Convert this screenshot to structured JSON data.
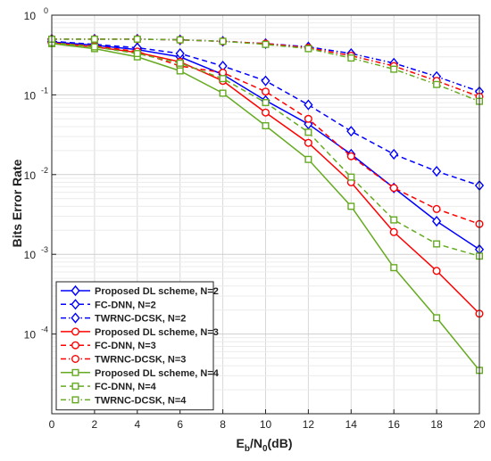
{
  "chart_data": {
    "type": "line",
    "title": "",
    "xlabel_base": "E",
    "xlabel_sub": "b",
    "xlabel_mid": "/N",
    "xlabel_sub2": "0",
    "xlabel_tail": "(dB)",
    "ylabel": "Bits Error Rate",
    "xlim": [
      0,
      20
    ],
    "ylim": [
      1e-05,
      1
    ],
    "yscale": "log",
    "grid": true,
    "legend_position": "bottom-left",
    "x_ticks": [
      "0",
      "2",
      "4",
      "6",
      "8",
      "10",
      "12",
      "14",
      "16",
      "18",
      "20"
    ],
    "y_ticks": [
      {
        "base": "10",
        "exp": "0"
      },
      {
        "base": "10",
        "exp": "-1"
      },
      {
        "base": "10",
        "exp": "-2"
      },
      {
        "base": "10",
        "exp": "-3"
      },
      {
        "base": "10",
        "exp": "-4"
      }
    ],
    "x": [
      0,
      2,
      4,
      6,
      8,
      10,
      12,
      14,
      16,
      18,
      20
    ],
    "series": [
      {
        "name": "Proposed DL scheme, N=2",
        "color": "#0000ff",
        "dash": "solid",
        "marker": "diamond",
        "values": [
          0.46,
          0.42,
          0.37,
          0.3,
          0.18,
          0.085,
          0.043,
          0.018,
          0.0068,
          0.0026,
          0.00115
        ]
      },
      {
        "name": "FC-DNN, N=2",
        "color": "#0000ff",
        "dash": "dashed",
        "marker": "diamond",
        "values": [
          0.47,
          0.43,
          0.39,
          0.33,
          0.23,
          0.15,
          0.075,
          0.035,
          0.018,
          0.011,
          0.0073
        ]
      },
      {
        "name": "TWRNC-DCSK, N=2",
        "color": "#0000ff",
        "dash": "dashdot",
        "marker": "diamond",
        "values": [
          0.5,
          0.5,
          0.5,
          0.49,
          0.47,
          0.44,
          0.4,
          0.33,
          0.25,
          0.17,
          0.11
        ]
      },
      {
        "name": "Proposed DL scheme, N=3",
        "color": "#ff0000",
        "dash": "solid",
        "marker": "circle",
        "values": [
          0.45,
          0.4,
          0.34,
          0.26,
          0.15,
          0.06,
          0.025,
          0.008,
          0.0019,
          0.00062,
          0.00018
        ]
      },
      {
        "name": "FC-DNN, N=3",
        "color": "#ff0000",
        "dash": "dashed",
        "marker": "circle",
        "values": [
          0.45,
          0.41,
          0.35,
          0.23,
          0.19,
          0.11,
          0.05,
          0.017,
          0.0068,
          0.0037,
          0.0024
        ]
      },
      {
        "name": "TWRNC-DCSK, N=3",
        "color": "#ff0000",
        "dash": "dashdot",
        "marker": "circle",
        "values": [
          0.5,
          0.5,
          0.5,
          0.49,
          0.47,
          0.44,
          0.39,
          0.31,
          0.23,
          0.15,
          0.095
        ]
      },
      {
        "name": "Proposed DL scheme, N=4",
        "color": "#66aa22",
        "dash": "solid",
        "marker": "square",
        "values": [
          0.44,
          0.38,
          0.3,
          0.2,
          0.105,
          0.041,
          0.0155,
          0.004,
          0.00068,
          0.00016,
          3.5e-05
        ]
      },
      {
        "name": "FC-DNN, N=4",
        "color": "#66aa22",
        "dash": "dashed",
        "marker": "square",
        "values": [
          0.45,
          0.4,
          0.33,
          0.25,
          0.16,
          0.08,
          0.034,
          0.0093,
          0.0027,
          0.00135,
          0.00095
        ]
      },
      {
        "name": "TWRNC-DCSK, N=4",
        "color": "#66aa22",
        "dash": "dashdot",
        "marker": "square",
        "values": [
          0.5,
          0.5,
          0.5,
          0.49,
          0.47,
          0.43,
          0.38,
          0.29,
          0.21,
          0.135,
          0.083
        ]
      }
    ]
  }
}
